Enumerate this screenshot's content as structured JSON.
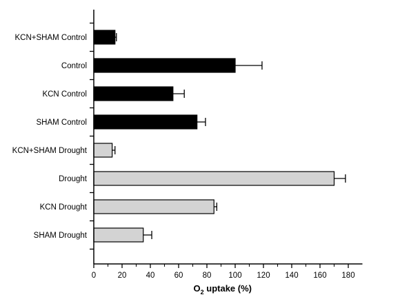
{
  "chart_data": {
    "type": "bar",
    "orientation": "horizontal",
    "categories": [
      "KCN+SHAM Control",
      "Control",
      "KCN Control",
      "SHAM Control",
      "KCN+SHAM Drought",
      "Drought",
      "KCN Drought",
      "SHAM Drought"
    ],
    "values": [
      15,
      100,
      56,
      73,
      13,
      170,
      85,
      35
    ],
    "errors": [
      1,
      19,
      8,
      6,
      2,
      8,
      2,
      6
    ],
    "bar_colors": [
      "#000000",
      "#000000",
      "#000000",
      "#000000",
      "#d3d3d3",
      "#d3d3d3",
      "#d3d3d3",
      "#d3d3d3"
    ],
    "xlabel": {
      "main": "O",
      "subscript": "2",
      "rest": " uptake (%)"
    },
    "xlim": [
      0,
      190
    ],
    "xticks": [
      0,
      20,
      40,
      60,
      80,
      100,
      120,
      140,
      160,
      180
    ],
    "grid": false
  }
}
